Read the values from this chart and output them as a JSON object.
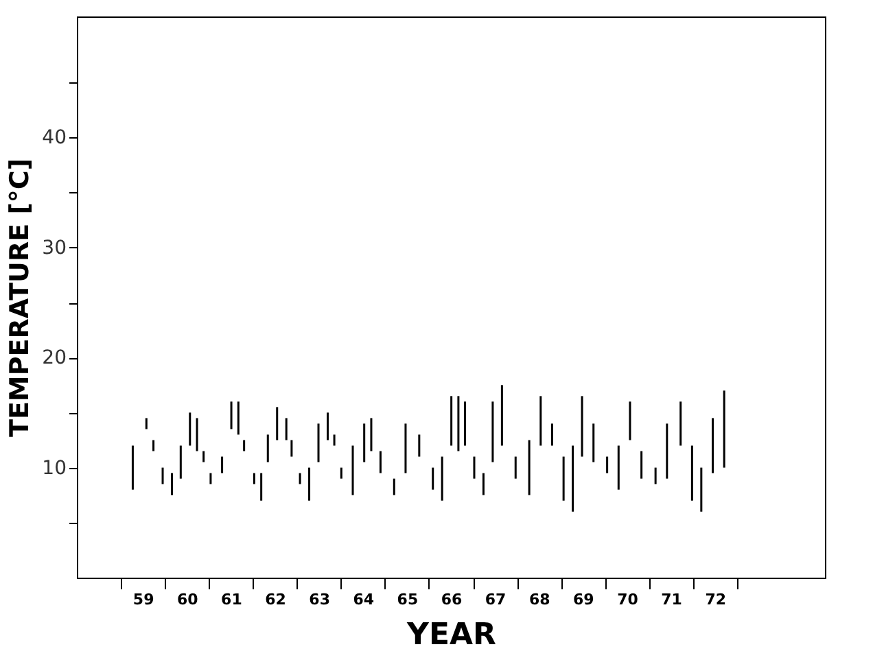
{
  "chart_data": {
    "type": "bar",
    "xlabel": "YEAR",
    "ylabel": "TEMPERATURE [°C]",
    "color": "#000000",
    "grid": false,
    "xlim": [
      57.5,
      74.5
    ],
    "ylim": [
      0,
      51
    ],
    "xticks": [
      {
        "value": 58.5,
        "label": null
      },
      59,
      {
        "value": 59.5,
        "label": null
      },
      60,
      {
        "value": 60.5,
        "label": null
      },
      61,
      {
        "value": 61.5,
        "label": null
      },
      62,
      {
        "value": 62.5,
        "label": null
      },
      63,
      {
        "value": 63.5,
        "label": null
      },
      64,
      {
        "value": 64.5,
        "label": null
      },
      65,
      {
        "value": 65.5,
        "label": null
      },
      66,
      {
        "value": 66.5,
        "label": null
      },
      67,
      {
        "value": 67.5,
        "label": null
      },
      68,
      {
        "value": 68.5,
        "label": null
      },
      69,
      {
        "value": 69.5,
        "label": null
      },
      70,
      {
        "value": 70.5,
        "label": null
      },
      71,
      {
        "value": 71.5,
        "label": null
      },
      72,
      {
        "value": 72.5,
        "label": null
      }
    ],
    "yticks": [
      {
        "value": 5,
        "label": null
      },
      10,
      {
        "value": 15,
        "label": null
      },
      20,
      {
        "value": 25,
        "label": null
      },
      30,
      {
        "value": 35,
        "label": null
      },
      40,
      {
        "value": 45,
        "label": null
      }
    ],
    "x": [
      58.77,
      59.08,
      59.24,
      59.45,
      59.66,
      59.86,
      60.07,
      60.23,
      60.38,
      60.54,
      60.8,
      61.01,
      61.17,
      61.3,
      61.53,
      61.69,
      61.84,
      62.05,
      62.26,
      62.38,
      62.57,
      62.78,
      62.99,
      63.2,
      63.35,
      63.51,
      63.77,
      64.03,
      64.19,
      64.4,
      64.71,
      64.97,
      65.28,
      65.59,
      65.8,
      66.01,
      66.17,
      66.32,
      66.53,
      66.74,
      66.95,
      67.16,
      67.47,
      67.78,
      68.04,
      68.3,
      68.56,
      68.77,
      68.98,
      69.24,
      69.55,
      69.81,
      70.07,
      70.33,
      70.65,
      70.91,
      71.22,
      71.48,
      71.69,
      71.95,
      72.21
    ],
    "base": [
      8,
      13.5,
      11.5,
      8.5,
      7.5,
      9,
      12,
      11.5,
      10.5,
      8.5,
      9.5,
      13.5,
      13,
      11.5,
      8.5,
      7,
      10.5,
      12.5,
      12.5,
      11,
      8.5,
      7,
      10.5,
      12.5,
      12,
      9,
      7.5,
      10.5,
      11.5,
      9.5,
      7.5,
      9.5,
      11,
      8,
      7,
      12,
      11.5,
      12,
      9,
      7.5,
      10.5,
      12,
      9,
      7.5,
      12,
      12,
      7,
      6,
      11,
      10.5,
      9.5,
      8,
      12.5,
      9,
      8.5,
      9,
      12,
      7,
      6,
      9.5,
      10
    ],
    "values": [
      4,
      1,
      1,
      1.5,
      2,
      3,
      3,
      3,
      1,
      1,
      1.5,
      2.5,
      3,
      1,
      1,
      2.5,
      2.5,
      3,
      2,
      1.5,
      1,
      3,
      3.5,
      2.5,
      1,
      1,
      4.5,
      3.5,
      3,
      2,
      1.5,
      4.5,
      2,
      2,
      4,
      4.5,
      5,
      4,
      2,
      2,
      5.5,
      5.5,
      2,
      5,
      4.5,
      2,
      4,
      6,
      5.5,
      3.5,
      1.5,
      4,
      3.5,
      2.5,
      1.5,
      5,
      4,
      5,
      4,
      5,
      7
    ]
  }
}
